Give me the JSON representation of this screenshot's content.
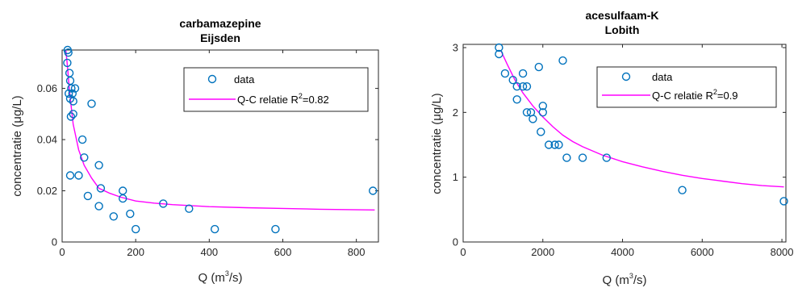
{
  "chart_data": [
    {
      "type": "scatter",
      "title_lines": [
        "carbamazepine",
        "Eijsden"
      ],
      "xlabel_main": "Q (m",
      "xlabel_sup": "3",
      "xlabel_end": "/s)",
      "ylabel": "concentratie (μg/L)",
      "xlim": [
        0,
        860
      ],
      "ylim": [
        0,
        0.075
      ],
      "xticks": [
        0,
        200,
        400,
        600,
        800
      ],
      "xtick_labels": [
        "0",
        "200",
        "400",
        "600",
        "800"
      ],
      "yticks": [
        0,
        0.02,
        0.04,
        0.06
      ],
      "ytick_labels": [
        "0",
        "0.02",
        "0.04",
        "0.06"
      ],
      "legend": {
        "placement": "top-right",
        "scatter_label": "data",
        "fit_label_main": "Q-C relatie R",
        "fit_label_sup": "2",
        "fit_label_end": "=0.82"
      },
      "colors": {
        "points": "#0072BD",
        "fit": "#FF00FF"
      },
      "series": [
        {
          "name": "data",
          "kind": "scatter",
          "points": [
            [
              15,
              0.075
            ],
            [
              17,
              0.074
            ],
            [
              14,
              0.07
            ],
            [
              20,
              0.066
            ],
            [
              22,
              0.063
            ],
            [
              25,
              0.06
            ],
            [
              28,
              0.058
            ],
            [
              18,
              0.058
            ],
            [
              35,
              0.06
            ],
            [
              30,
              0.055
            ],
            [
              22,
              0.056
            ],
            [
              24,
              0.049
            ],
            [
              30,
              0.05
            ],
            [
              80,
              0.054
            ],
            [
              55,
              0.04
            ],
            [
              60,
              0.033
            ],
            [
              45,
              0.026
            ],
            [
              22,
              0.026
            ],
            [
              100,
              0.03
            ],
            [
              105,
              0.021
            ],
            [
              70,
              0.018
            ],
            [
              165,
              0.02
            ],
            [
              165,
              0.017
            ],
            [
              100,
              0.014
            ],
            [
              140,
              0.01
            ],
            [
              185,
              0.011
            ],
            [
              200,
              0.005
            ],
            [
              275,
              0.015
            ],
            [
              345,
              0.013
            ],
            [
              415,
              0.005
            ],
            [
              580,
              0.005
            ],
            [
              845,
              0.02
            ]
          ]
        },
        {
          "name": "Q-C relatie",
          "kind": "line",
          "curve": [
            [
              10,
              0.075
            ],
            [
              15,
              0.068
            ],
            [
              20,
              0.059
            ],
            [
              30,
              0.046
            ],
            [
              45,
              0.036
            ],
            [
              60,
              0.03
            ],
            [
              80,
              0.025
            ],
            [
              100,
              0.021
            ],
            [
              130,
              0.019
            ],
            [
              160,
              0.0175
            ],
            [
              200,
              0.016
            ],
            [
              250,
              0.0152
            ],
            [
              300,
              0.0146
            ],
            [
              400,
              0.0138
            ],
            [
              500,
              0.0134
            ],
            [
              600,
              0.0131
            ],
            [
              700,
              0.0128
            ],
            [
              850,
              0.0125
            ]
          ]
        }
      ]
    },
    {
      "type": "scatter",
      "title_lines": [
        "acesulfaam-K",
        "Lobith"
      ],
      "xlabel_main": "Q (m",
      "xlabel_sup": "3",
      "xlabel_end": "/s)",
      "ylabel": "concentratie (μg/L)",
      "xlim": [
        0,
        8100
      ],
      "ylim": [
        0,
        3.05
      ],
      "xticks": [
        0,
        2000,
        4000,
        6000,
        8000
      ],
      "xtick_labels": [
        "0",
        "2000",
        "4000",
        "6000",
        "8000"
      ],
      "yticks": [
        0,
        1,
        2,
        3
      ],
      "ytick_labels": [
        "0",
        "1",
        "2",
        "3"
      ],
      "legend": {
        "placement": "top-right",
        "scatter_label": "data",
        "fit_label_main": "Q-C relatie R",
        "fit_label_sup": "2",
        "fit_label_end": "=0.9"
      },
      "colors": {
        "points": "#0072BD",
        "fit": "#FF00FF"
      },
      "series": [
        {
          "name": "data",
          "kind": "scatter",
          "points": [
            [
              900,
              3.0
            ],
            [
              900,
              2.9
            ],
            [
              1050,
              2.6
            ],
            [
              1250,
              2.5
            ],
            [
              1350,
              2.4
            ],
            [
              1350,
              2.2
            ],
            [
              1500,
              2.6
            ],
            [
              1500,
              2.4
            ],
            [
              1600,
              2.4
            ],
            [
              1600,
              2.0
            ],
            [
              1700,
              2.0
            ],
            [
              1750,
              1.9
            ],
            [
              1900,
              2.7
            ],
            [
              2000,
              2.1
            ],
            [
              2000,
              2.0
            ],
            [
              1950,
              1.7
            ],
            [
              2150,
              1.5
            ],
            [
              2300,
              1.5
            ],
            [
              2400,
              1.5
            ],
            [
              2500,
              2.8
            ],
            [
              2600,
              1.3
            ],
            [
              3000,
              1.3
            ],
            [
              3600,
              1.3
            ],
            [
              5500,
              0.8
            ],
            [
              8050,
              0.63
            ]
          ]
        },
        {
          "name": "Q-C relatie",
          "kind": "line",
          "curve": [
            [
              950,
              2.95
            ],
            [
              1100,
              2.75
            ],
            [
              1300,
              2.5
            ],
            [
              1500,
              2.3
            ],
            [
              1750,
              2.1
            ],
            [
              2000,
              1.93
            ],
            [
              2250,
              1.78
            ],
            [
              2500,
              1.65
            ],
            [
              2750,
              1.55
            ],
            [
              3000,
              1.47
            ],
            [
              3500,
              1.34
            ],
            [
              4000,
              1.24
            ],
            [
              4500,
              1.16
            ],
            [
              5000,
              1.09
            ],
            [
              5500,
              1.03
            ],
            [
              6000,
              0.98
            ],
            [
              6500,
              0.94
            ],
            [
              7000,
              0.9
            ],
            [
              7500,
              0.87
            ],
            [
              8050,
              0.85
            ]
          ]
        }
      ]
    }
  ]
}
